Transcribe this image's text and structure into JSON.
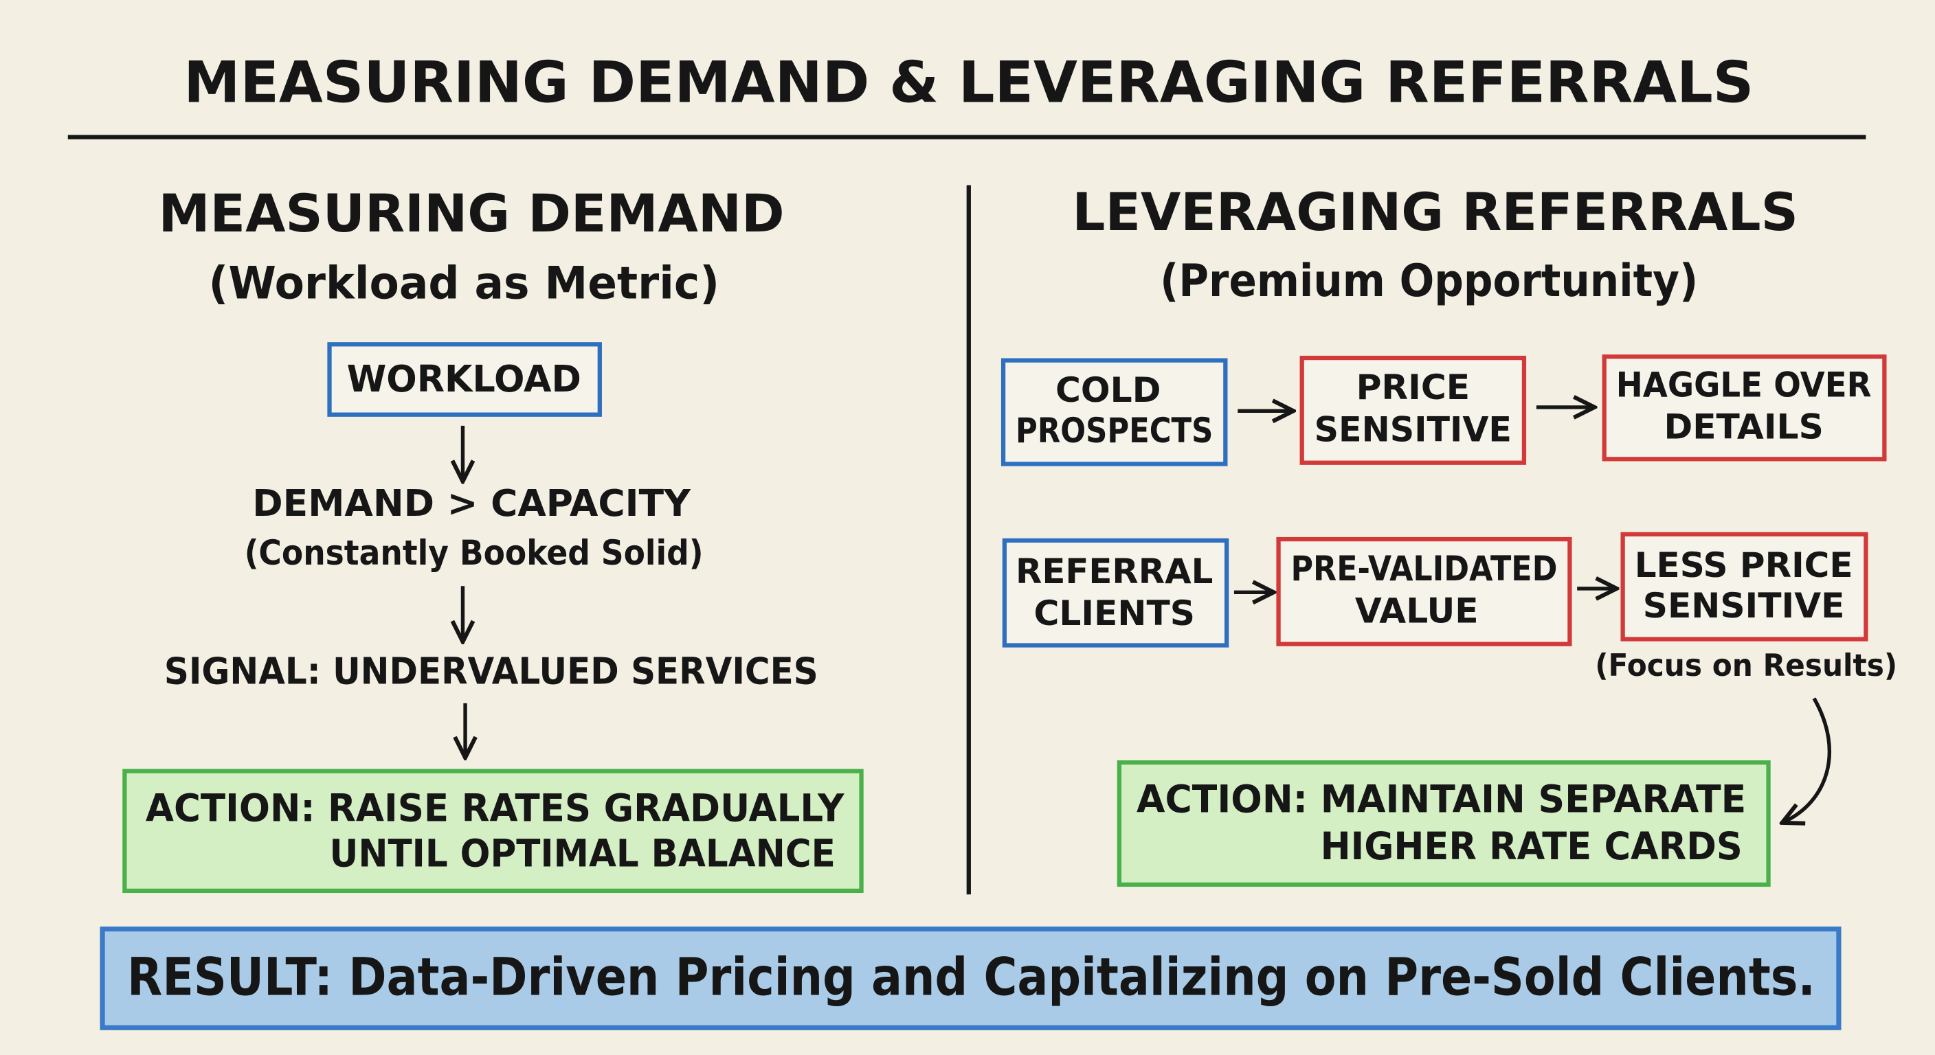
{
  "title": "MEASURING DEMAND & LEVERAGING REFERRALS",
  "left": {
    "heading": "MEASURING DEMAND",
    "subheading": "(Workload as Metric)",
    "nodes": [
      {
        "label": "WORKLOAD"
      },
      {
        "label": "DEMAND > CAPACITY",
        "note": "(Constantly Booked Solid)"
      },
      {
        "label": "SIGNAL: UNDERVALUED SERVICES"
      }
    ],
    "action": {
      "lines": [
        "ACTION: RAISE RATES GRADUALLY",
        "UNTIL OPTIMAL BALANCE"
      ]
    }
  },
  "right": {
    "heading": "LEVERAGING REFERRALS",
    "subheading": "(Premium Opportunity)",
    "rows": [
      {
        "steps": [
          {
            "lines": [
              "COLD",
              "PROSPECTS"
            ]
          },
          {
            "lines": [
              "PRICE",
              "SENSITIVE"
            ]
          },
          {
            "lines": [
              "HAGGLE OVER",
              "DETAILS"
            ]
          }
        ]
      },
      {
        "steps": [
          {
            "lines": [
              "REFERRAL",
              "CLIENTS"
            ]
          },
          {
            "lines": [
              "PRE-VALIDATED",
              "VALUE"
            ]
          },
          {
            "lines": [
              "LESS PRICE",
              "SENSITIVE"
            ]
          }
        ],
        "note": "(Focus on Results)"
      }
    ],
    "action": {
      "lines": [
        "ACTION: MAINTAIN SEPARATE",
        "HIGHER RATE CARDS"
      ]
    }
  },
  "result": "RESULT: Data-Driven Pricing and Capitalizing on Pre-Sold Clients."
}
